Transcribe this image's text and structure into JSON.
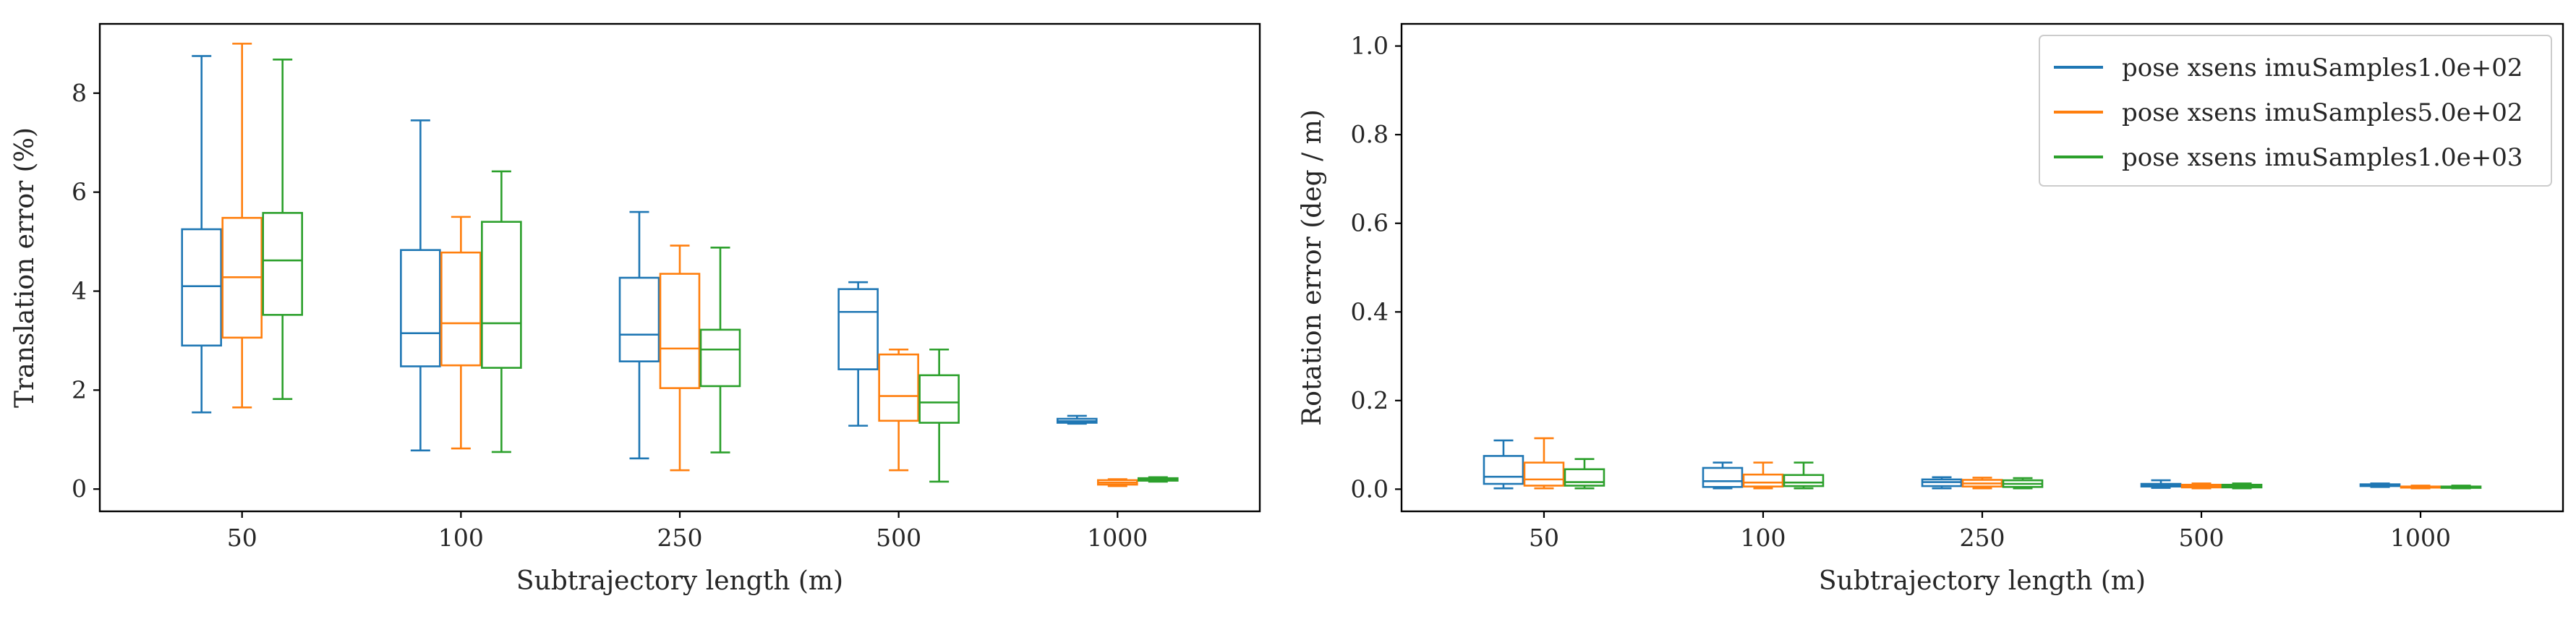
{
  "chart_data": [
    {
      "type": "box",
      "xlabel": "Subtrajectory length (m)",
      "ylabel": "Translation error (%)",
      "categories": [
        "50",
        "100",
        "250",
        "500",
        "1000"
      ],
      "ylim": [
        -0.45,
        9.4
      ],
      "yticks": [
        0,
        2,
        4,
        6,
        8
      ],
      "grid": false,
      "legend": "none",
      "series": [
        {
          "name": "pose xsens imuSamples1.0e+02",
          "color": "#1f77b4",
          "boxes": [
            {
              "whislo": 1.55,
              "q1": 2.9,
              "med": 4.1,
              "q3": 5.25,
              "whishi": 8.75
            },
            {
              "whislo": 0.78,
              "q1": 2.48,
              "med": 3.15,
              "q3": 4.83,
              "whishi": 7.45
            },
            {
              "whislo": 0.62,
              "q1": 2.58,
              "med": 3.12,
              "q3": 4.27,
              "whishi": 5.6
            },
            {
              "whislo": 1.28,
              "q1": 2.42,
              "med": 3.58,
              "q3": 4.04,
              "whishi": 4.18
            },
            {
              "whislo": 1.32,
              "q1": 1.34,
              "med": 1.37,
              "q3": 1.42,
              "whishi": 1.48
            }
          ]
        },
        {
          "name": "pose xsens imuSamples5.0e+02",
          "color": "#ff7f0e",
          "boxes": [
            {
              "whislo": 1.65,
              "q1": 3.06,
              "med": 4.28,
              "q3": 5.48,
              "whishi": 9.0
            },
            {
              "whislo": 0.82,
              "q1": 2.5,
              "med": 3.35,
              "q3": 4.78,
              "whishi": 5.5
            },
            {
              "whislo": 0.38,
              "q1": 2.04,
              "med": 2.84,
              "q3": 4.35,
              "whishi": 4.92
            },
            {
              "whislo": 0.38,
              "q1": 1.38,
              "med": 1.88,
              "q3": 2.72,
              "whishi": 2.82
            },
            {
              "whislo": 0.06,
              "q1": 0.09,
              "med": 0.13,
              "q3": 0.18,
              "whishi": 0.2
            }
          ]
        },
        {
          "name": "pose xsens imuSamples1.0e+03",
          "color": "#2ca02c",
          "boxes": [
            {
              "whislo": 1.82,
              "q1": 3.52,
              "med": 4.62,
              "q3": 5.58,
              "whishi": 8.68
            },
            {
              "whislo": 0.75,
              "q1": 2.45,
              "med": 3.35,
              "q3": 5.4,
              "whishi": 6.42
            },
            {
              "whislo": 0.74,
              "q1": 2.08,
              "med": 2.82,
              "q3": 3.22,
              "whishi": 4.88
            },
            {
              "whislo": 0.15,
              "q1": 1.34,
              "med": 1.75,
              "q3": 2.3,
              "whishi": 2.82
            },
            {
              "whislo": 0.15,
              "q1": 0.17,
              "med": 0.2,
              "q3": 0.22,
              "whishi": 0.24
            }
          ]
        }
      ]
    },
    {
      "type": "box",
      "xlabel": "Subtrajectory length (m)",
      "ylabel": "Rotation error (deg / m)",
      "categories": [
        "50",
        "100",
        "250",
        "500",
        "1000"
      ],
      "ylim": [
        -0.05,
        1.05
      ],
      "yticks": [
        0.0,
        0.2,
        0.4,
        0.6,
        0.8,
        1.0
      ],
      "grid": false,
      "legend": "top-right",
      "series": [
        {
          "name": "pose xsens imuSamples1.0e+02",
          "color": "#1f77b4",
          "boxes": [
            {
              "whislo": 0.002,
              "q1": 0.012,
              "med": 0.028,
              "q3": 0.075,
              "whishi": 0.11
            },
            {
              "whislo": 0.002,
              "q1": 0.005,
              "med": 0.018,
              "q3": 0.048,
              "whishi": 0.06
            },
            {
              "whislo": 0.002,
              "q1": 0.007,
              "med": 0.016,
              "q3": 0.022,
              "whishi": 0.027
            },
            {
              "whislo": 0.003,
              "q1": 0.006,
              "med": 0.009,
              "q3": 0.012,
              "whishi": 0.02
            },
            {
              "whislo": 0.005,
              "q1": 0.007,
              "med": 0.009,
              "q3": 0.011,
              "whishi": 0.013
            }
          ]
        },
        {
          "name": "pose xsens imuSamples5.0e+02",
          "color": "#ff7f0e",
          "boxes": [
            {
              "whislo": 0.002,
              "q1": 0.008,
              "med": 0.022,
              "q3": 0.06,
              "whishi": 0.115
            },
            {
              "whislo": 0.002,
              "q1": 0.006,
              "med": 0.015,
              "q3": 0.033,
              "whishi": 0.06
            },
            {
              "whislo": 0.002,
              "q1": 0.006,
              "med": 0.013,
              "q3": 0.021,
              "whishi": 0.026
            },
            {
              "whislo": 0.002,
              "q1": 0.004,
              "med": 0.007,
              "q3": 0.01,
              "whishi": 0.013
            },
            {
              "whislo": 0.002,
              "q1": 0.004,
              "med": 0.005,
              "q3": 0.006,
              "whishi": 0.008
            }
          ]
        },
        {
          "name": "pose xsens imuSamples1.0e+03",
          "color": "#2ca02c",
          "boxes": [
            {
              "whislo": 0.002,
              "q1": 0.008,
              "med": 0.016,
              "q3": 0.045,
              "whishi": 0.068
            },
            {
              "whislo": 0.002,
              "q1": 0.007,
              "med": 0.015,
              "q3": 0.032,
              "whishi": 0.06
            },
            {
              "whislo": 0.002,
              "q1": 0.005,
              "med": 0.012,
              "q3": 0.02,
              "whishi": 0.025
            },
            {
              "whislo": 0.002,
              "q1": 0.004,
              "med": 0.007,
              "q3": 0.01,
              "whishi": 0.013
            },
            {
              "whislo": 0.002,
              "q1": 0.003,
              "med": 0.005,
              "q3": 0.006,
              "whishi": 0.008
            }
          ]
        }
      ]
    }
  ]
}
